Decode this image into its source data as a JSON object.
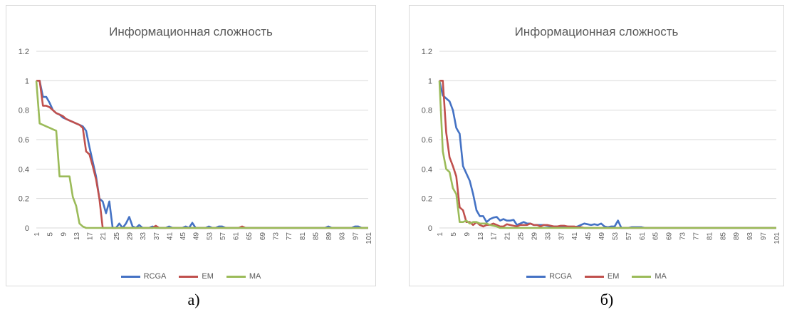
{
  "chart_data": [
    {
      "type": "line",
      "title": "Информационная сложность",
      "caption": "а)",
      "x": [
        1,
        2,
        3,
        4,
        5,
        6,
        7,
        8,
        9,
        10,
        11,
        12,
        13,
        14,
        15,
        16,
        17,
        18,
        19,
        20,
        21,
        22,
        23,
        24,
        25,
        26,
        27,
        28,
        29,
        30,
        31,
        32,
        33,
        34,
        35,
        36,
        37,
        38,
        39,
        40,
        41,
        42,
        43,
        44,
        45,
        46,
        47,
        48,
        49,
        50,
        51,
        52,
        53,
        54,
        55,
        56,
        57,
        58,
        59,
        60,
        61,
        62,
        63,
        64,
        65,
        66,
        67,
        68,
        69,
        70,
        71,
        72,
        73,
        74,
        75,
        76,
        77,
        78,
        79,
        80,
        81,
        82,
        83,
        84,
        85,
        86,
        87,
        88,
        89,
        90,
        91,
        92,
        93,
        94,
        95,
        96,
        97,
        98,
        99,
        100,
        101
      ],
      "x_tick_labels": [
        "1",
        "5",
        "9",
        "13",
        "17",
        "21",
        "25",
        "29",
        "33",
        "37",
        "41",
        "45",
        "49",
        "53",
        "57",
        "61",
        "65",
        "69",
        "73",
        "77",
        "81",
        "85",
        "89",
        "93",
        "97",
        "101"
      ],
      "ylim": [
        0,
        1.2
      ],
      "y_ticks": [
        "0",
        "0.2",
        "0.4",
        "0.6",
        "0.8",
        "1",
        "1.2"
      ],
      "grid": true,
      "legend_position": "bottom",
      "series": [
        {
          "name": "RCGA",
          "color": "#4472c4",
          "values": [
            1,
            1,
            0.89,
            0.89,
            0.85,
            0.8,
            0.78,
            0.77,
            0.75,
            0.74,
            0.73,
            0.72,
            0.71,
            0.7,
            0.69,
            0.66,
            0.55,
            0.45,
            0.35,
            0.2,
            0.18,
            0.1,
            0.18,
            0,
            0,
            0.03,
            0,
            0.03,
            0.075,
            0.01,
            0,
            0.02,
            0,
            0,
            0,
            0.01,
            0,
            0,
            0,
            0,
            0.01,
            0,
            0,
            0,
            0,
            0.01,
            0,
            0.035,
            0,
            0,
            0,
            0,
            0.01,
            0,
            0,
            0.01,
            0.01,
            0,
            0,
            0,
            0,
            0,
            0,
            0,
            0,
            0,
            0,
            0,
            0,
            0,
            0,
            0,
            0,
            0,
            0,
            0,
            0,
            0,
            0,
            0,
            0,
            0,
            0,
            0,
            0,
            0,
            0,
            0,
            0.01,
            0,
            0,
            0,
            0,
            0,
            0,
            0,
            0.01,
            0.01,
            0,
            0,
            0
          ]
        },
        {
          "name": "EM",
          "color": "#c0504d",
          "values": [
            1,
            1,
            0.83,
            0.83,
            0.82,
            0.8,
            0.78,
            0.77,
            0.76,
            0.74,
            0.73,
            0.72,
            0.71,
            0.7,
            0.68,
            0.52,
            0.5,
            0.42,
            0.33,
            0.2,
            0,
            0,
            0,
            0,
            0,
            0,
            0,
            0,
            0,
            0,
            0,
            0,
            0,
            0,
            0,
            0,
            0.015,
            0,
            0,
            0,
            0,
            0,
            0,
            0,
            0,
            0,
            0,
            0,
            0,
            0,
            0,
            0,
            0,
            0,
            0,
            0,
            0,
            0,
            0,
            0,
            0,
            0,
            0.01,
            0,
            0,
            0,
            0,
            0,
            0,
            0,
            0,
            0,
            0,
            0,
            0,
            0,
            0,
            0,
            0,
            0,
            0,
            0,
            0,
            0,
            0,
            0,
            0,
            0,
            0,
            0,
            0,
            0,
            0,
            0,
            0,
            0,
            0,
            0,
            0,
            0,
            0
          ]
        },
        {
          "name": "MA",
          "color": "#9bbb59",
          "values": [
            1,
            0.71,
            0.7,
            0.69,
            0.68,
            0.67,
            0.66,
            0.35,
            0.35,
            0.35,
            0.35,
            0.21,
            0.15,
            0.03,
            0.01,
            0,
            0,
            0,
            0,
            0,
            0,
            0,
            0,
            0,
            0,
            0,
            0,
            0,
            0,
            0,
            0,
            0,
            0,
            0,
            0,
            0,
            0,
            0,
            0,
            0,
            0,
            0,
            0,
            0,
            0,
            0,
            0,
            0,
            0,
            0,
            0,
            0,
            0,
            0,
            0,
            0,
            0,
            0,
            0,
            0,
            0,
            0,
            0,
            0,
            0,
            0,
            0,
            0,
            0,
            0,
            0,
            0,
            0,
            0,
            0,
            0,
            0,
            0,
            0,
            0,
            0,
            0,
            0,
            0,
            0,
            0,
            0,
            0,
            0,
            0,
            0,
            0,
            0,
            0,
            0,
            0,
            0,
            0,
            0,
            0,
            0
          ]
        }
      ]
    },
    {
      "type": "line",
      "title": "Информационная сложность",
      "caption": "б)",
      "x": [
        1,
        2,
        3,
        4,
        5,
        6,
        7,
        8,
        9,
        10,
        11,
        12,
        13,
        14,
        15,
        16,
        17,
        18,
        19,
        20,
        21,
        22,
        23,
        24,
        25,
        26,
        27,
        28,
        29,
        30,
        31,
        32,
        33,
        34,
        35,
        36,
        37,
        38,
        39,
        40,
        41,
        42,
        43,
        44,
        45,
        46,
        47,
        48,
        49,
        50,
        51,
        52,
        53,
        54,
        55,
        56,
        57,
        58,
        59,
        60,
        61,
        62,
        63,
        64,
        65,
        66,
        67,
        68,
        69,
        70,
        71,
        72,
        73,
        74,
        75,
        76,
        77,
        78,
        79,
        80,
        81,
        82,
        83,
        84,
        85,
        86,
        87,
        88,
        89,
        90,
        91,
        92,
        93,
        94,
        95,
        96,
        97,
        98,
        99,
        100,
        101
      ],
      "x_tick_labels": [
        "1",
        "5",
        "9",
        "13",
        "17",
        "21",
        "25",
        "29",
        "33",
        "37",
        "41",
        "45",
        "49",
        "53",
        "57",
        "61",
        "65",
        "69",
        "73",
        "77",
        "81",
        "85",
        "89",
        "93",
        "97",
        "101"
      ],
      "ylim": [
        0,
        1.2
      ],
      "y_ticks": [
        "0",
        "0.2",
        "0.4",
        "0.6",
        "0.8",
        "1",
        "1.2"
      ],
      "grid": true,
      "legend_position": "bottom",
      "series": [
        {
          "name": "RCGA",
          "color": "#4472c4",
          "values": [
            1,
            0.9,
            0.88,
            0.86,
            0.8,
            0.68,
            0.64,
            0.42,
            0.37,
            0.32,
            0.23,
            0.12,
            0.08,
            0.08,
            0.04,
            0.06,
            0.07,
            0.075,
            0.05,
            0.06,
            0.05,
            0.05,
            0.055,
            0.02,
            0.03,
            0.04,
            0.03,
            0.03,
            0.02,
            0.02,
            0.02,
            0.02,
            0.015,
            0.01,
            0.01,
            0.01,
            0.01,
            0.01,
            0.01,
            0.005,
            0.005,
            0.01,
            0.02,
            0.03,
            0.025,
            0.02,
            0.025,
            0.02,
            0.03,
            0.01,
            0.005,
            0.01,
            0.01,
            0.05,
            0,
            0,
            0,
            0.005,
            0.005,
            0.005,
            0.005,
            0,
            0,
            0,
            0,
            0,
            0,
            0,
            0,
            0,
            0,
            0,
            0,
            0,
            0,
            0,
            0,
            0,
            0,
            0,
            0,
            0,
            0,
            0,
            0,
            0,
            0,
            0,
            0,
            0,
            0,
            0,
            0,
            0,
            0,
            0,
            0,
            0,
            0,
            0,
            0
          ]
        },
        {
          "name": "EM",
          "color": "#c0504d",
          "values": [
            1,
            1,
            0.65,
            0.48,
            0.42,
            0.35,
            0.14,
            0.12,
            0.04,
            0.04,
            0.02,
            0.04,
            0.02,
            0.01,
            0.02,
            0.02,
            0.03,
            0.02,
            0.01,
            0.01,
            0.025,
            0.02,
            0.015,
            0.01,
            0.02,
            0.02,
            0.02,
            0.03,
            0.02,
            0.02,
            0.01,
            0.02,
            0.02,
            0.015,
            0.01,
            0.01,
            0.015,
            0.015,
            0.01,
            0.01,
            0.01,
            0.005,
            0.005,
            0,
            0,
            0,
            0,
            0,
            0,
            0,
            0,
            0,
            0,
            0,
            0,
            0,
            0,
            0,
            0,
            0,
            0,
            0,
            0,
            0,
            0,
            0,
            0,
            0,
            0,
            0,
            0,
            0,
            0,
            0,
            0,
            0,
            0,
            0,
            0,
            0,
            0,
            0,
            0,
            0,
            0,
            0,
            0,
            0,
            0,
            0,
            0,
            0,
            0,
            0,
            0,
            0,
            0,
            0,
            0,
            0,
            0
          ]
        },
        {
          "name": "MA",
          "color": "#9bbb59",
          "values": [
            1,
            0.52,
            0.4,
            0.38,
            0.27,
            0.23,
            0.04,
            0.04,
            0.05,
            0.03,
            0.04,
            0.04,
            0.03,
            0.03,
            0.03,
            0.02,
            0.015,
            0.01,
            0,
            0,
            0,
            0,
            0,
            0,
            0,
            0,
            0,
            0,
            0,
            0,
            0,
            0,
            0,
            0,
            0,
            0,
            0,
            0,
            0,
            0,
            0,
            0,
            0,
            0,
            0,
            0,
            0,
            0,
            0,
            0,
            0,
            0,
            0,
            0,
            0,
            0,
            0,
            0,
            0,
            0,
            0,
            0,
            0,
            0,
            0,
            0,
            0,
            0,
            0,
            0,
            0,
            0,
            0,
            0,
            0,
            0,
            0,
            0,
            0,
            0,
            0,
            0,
            0,
            0,
            0,
            0,
            0,
            0,
            0,
            0,
            0,
            0,
            0,
            0,
            0,
            0,
            0,
            0,
            0,
            0,
            0
          ]
        }
      ]
    }
  ]
}
